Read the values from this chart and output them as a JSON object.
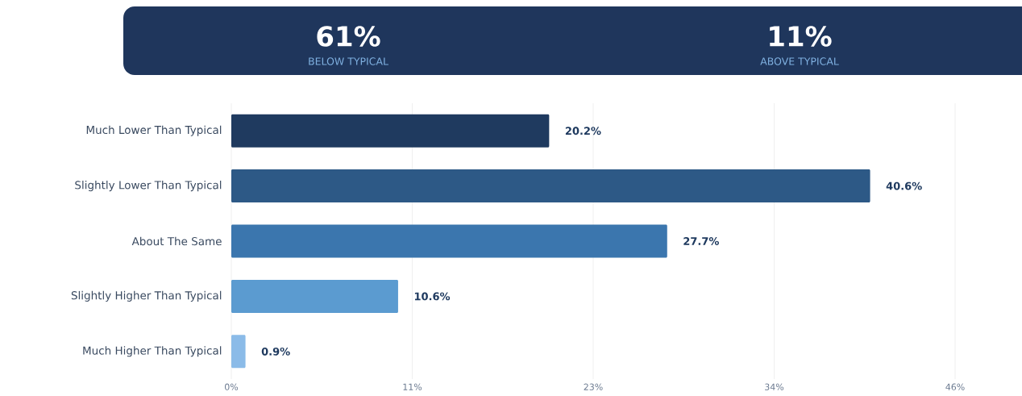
{
  "chart_data": {
    "type": "bar",
    "orientation": "horizontal",
    "categories": [
      "Much Lower Than Typical",
      "Slightly Lower Than Typical",
      "About The Same",
      "Slightly Higher Than Typical",
      "Much Higher Than Typical"
    ],
    "values": [
      20.2,
      40.6,
      27.7,
      10.6,
      0.9
    ],
    "colors": [
      "#1f3a5f",
      "#2d5986",
      "#3b76ae",
      "#5b9bd0",
      "#8bbbe8"
    ],
    "value_labels": [
      "20.2%",
      "40.6%",
      "27.7%",
      "10.6%",
      "0.9%"
    ],
    "xlim": [
      0,
      46
    ],
    "xticks": [
      {
        "value": 0,
        "label": "0%"
      },
      {
        "value": 11.5,
        "label": "11%"
      },
      {
        "value": 23,
        "label": "23%"
      },
      {
        "value": 34.5,
        "label": "34%"
      },
      {
        "value": 46,
        "label": "46%"
      }
    ],
    "grid": "x",
    "annotations": [
      "61%",
      "BELOW TYPICAL",
      "11%",
      "ABOVE TYPICAL"
    ]
  }
}
